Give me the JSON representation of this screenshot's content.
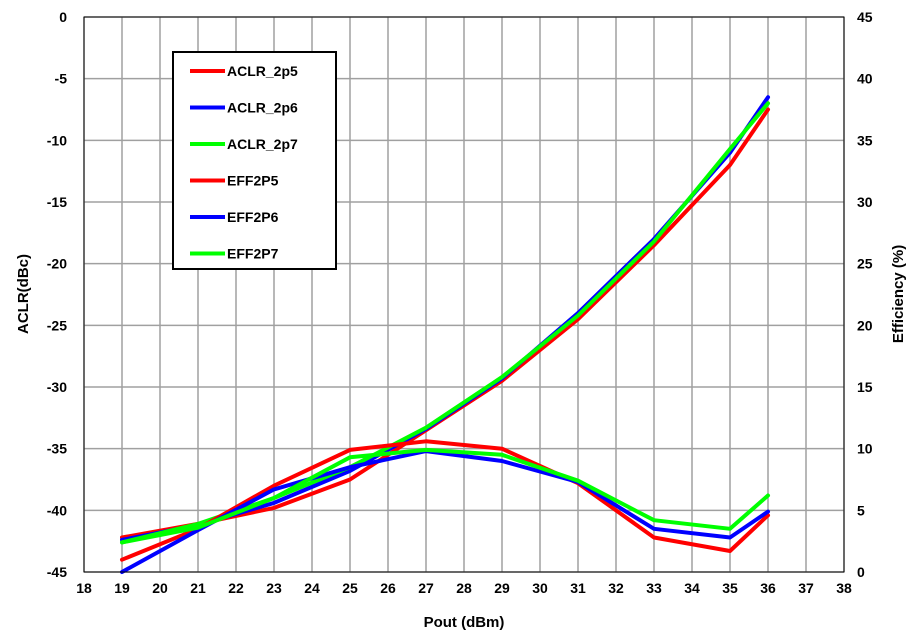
{
  "chart_data": {
    "type": "line",
    "xlabel": "Pout (dBm)",
    "ylabel_left": "ACLR(dBc)",
    "ylabel_right": "Efficiency (%)",
    "xlim": [
      18,
      38
    ],
    "ylim_left": [
      -45,
      0
    ],
    "ylim_right": [
      0,
      45
    ],
    "x_ticks": [
      "18",
      "19",
      "20",
      "21",
      "22",
      "23",
      "24",
      "25",
      "26",
      "27",
      "28",
      "29",
      "30",
      "31",
      "32",
      "33",
      "34",
      "35",
      "36",
      "37",
      "38"
    ],
    "y_left_ticks": [
      "0",
      "-5",
      "-10",
      "-15",
      "-20",
      "-25",
      "-30",
      "-35",
      "-40",
      "-45"
    ],
    "y_right_ticks": [
      "45",
      "40",
      "35",
      "30",
      "25",
      "20",
      "15",
      "10",
      "5",
      "0"
    ],
    "grid": true,
    "legend_position": "top-left",
    "x": [
      19,
      21,
      23,
      25,
      27,
      29,
      31,
      33,
      35,
      36
    ],
    "series": [
      {
        "name": "ACLR_2p5",
        "axis": "left",
        "color": "#ff0000",
        "values": [
          -44.0,
          -41.5,
          -38.0,
          -35.1,
          -34.4,
          -35.0,
          -37.8,
          -42.2,
          -43.3,
          -40.4
        ]
      },
      {
        "name": "ACLR_2p6",
        "axis": "left",
        "color": "#0000ff",
        "values": [
          -45.0,
          -41.6,
          -38.3,
          -36.5,
          -35.2,
          -36.0,
          -37.7,
          -41.5,
          -42.2,
          -40.1
        ]
      },
      {
        "name": "ACLR_2p7",
        "axis": "left",
        "color": "#00ff00",
        "values": [
          -42.6,
          -41.4,
          -39.0,
          -35.7,
          -35.1,
          -35.5,
          -37.6,
          -40.8,
          -41.5,
          -38.8
        ]
      },
      {
        "name": "EFF2P5",
        "axis": "right",
        "color": "#ff0000",
        "values": [
          2.8,
          3.9,
          5.2,
          7.5,
          11.5,
          15.5,
          20.5,
          26.5,
          33.0,
          37.5
        ]
      },
      {
        "name": "EFF2P6",
        "axis": "right",
        "color": "#0000ff",
        "values": [
          2.6,
          3.8,
          5.6,
          8.2,
          11.6,
          15.7,
          21.0,
          27.0,
          34.0,
          38.5
        ]
      },
      {
        "name": "EFF2P7",
        "axis": "right",
        "color": "#00ff00",
        "values": [
          2.4,
          3.9,
          6.0,
          8.5,
          11.7,
          15.8,
          20.8,
          26.8,
          34.3,
          38.0
        ]
      }
    ]
  }
}
